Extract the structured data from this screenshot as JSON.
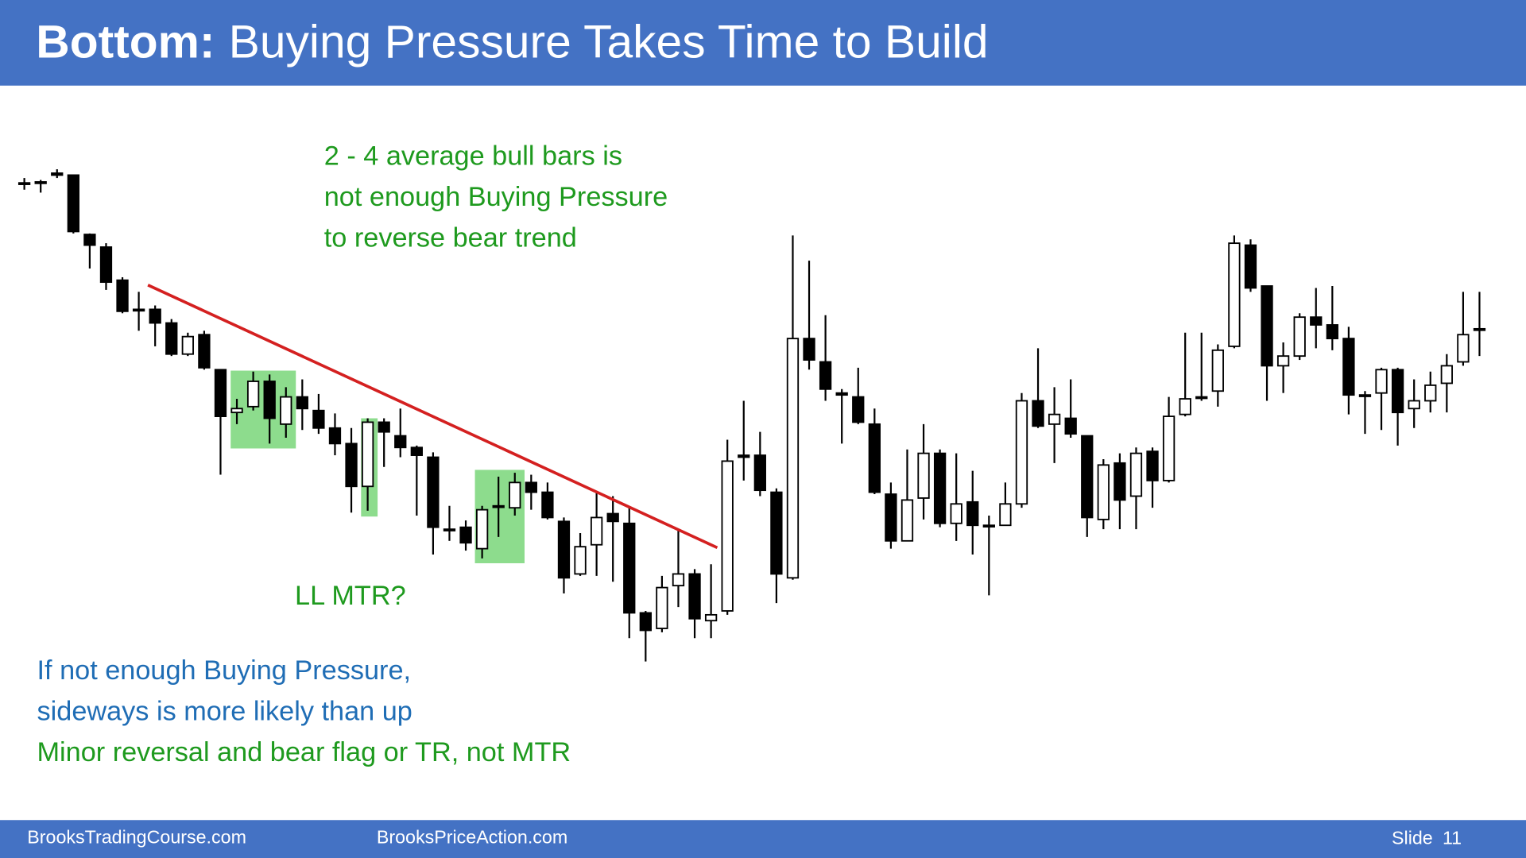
{
  "header": {
    "title_bold": "Bottom:",
    "title_rest": "Buying Pressure Takes Time to Build"
  },
  "annotations": {
    "green_top": [
      "2 - 4 average bull bars is",
      "not enough Buying Pressure",
      "to reverse bear trend"
    ],
    "ll_mtr": "LL MTR?",
    "blue": [
      "If not enough Buying Pressure,",
      "sideways is more likely than up"
    ],
    "green_bottom": "Minor reversal and bear flag or TR, not MTR"
  },
  "footer": {
    "left": "BrooksTradingCourse.com",
    "middle": "BrooksPriceAction.com",
    "slide_label": "Slide",
    "slide_number": "11"
  },
  "chart_data": {
    "type": "candlestick",
    "open": [
      812,
      813,
      822,
      820,
      759,
      746,
      712,
      682,
      682,
      668,
      636,
      656,
      620,
      576,
      582,
      608,
      564,
      592,
      578,
      560,
      544,
      500,
      566,
      552,
      540,
      530,
      456,
      458,
      436,
      480,
      478,
      504,
      494,
      464,
      410,
      440,
      472,
      462,
      370,
      354,
      398,
      410,
      362,
      372,
      532,
      532,
      494,
      406,
      652,
      628,
      596,
      592,
      564,
      492,
      444,
      488,
      534,
      462,
      484,
      460,
      460,
      482,
      588,
      564,
      570,
      552,
      466,
      524,
      490,
      536,
      506,
      574,
      592,
      598,
      644,
      748,
      706,
      624,
      634,
      674,
      666,
      652,
      594,
      596,
      620,
      580,
      588,
      606,
      628,
      662
    ],
    "high": [
      817,
      815,
      826,
      820,
      760,
      750,
      715,
      700,
      686,
      672,
      658,
      660,
      620,
      590,
      618,
      615,
      602,
      610,
      595,
      575,
      560,
      570,
      570,
      580,
      542,
      535,
      480,
      465,
      480,
      510,
      514,
      512,
      504,
      468,
      452,
      495,
      490,
      478,
      372,
      408,
      455,
      415,
      420,
      548,
      588,
      556,
      498,
      758,
      732,
      676,
      600,
      622,
      580,
      504,
      538,
      564,
      538,
      534,
      516,
      470,
      504,
      596,
      642,
      602,
      610,
      552,
      528,
      534,
      540,
      540,
      592,
      658,
      658,
      646,
      758,
      754,
      706,
      648,
      678,
      704,
      706,
      664,
      598,
      622,
      622,
      610,
      618,
      636,
      700,
      700
    ],
    "low": [
      805,
      802,
      817,
      760,
      724,
      702,
      678,
      660,
      644,
      634,
      634,
      620,
      512,
      564,
      578,
      544,
      550,
      558,
      554,
      532,
      473,
      475,
      520,
      530,
      470,
      430,
      444,
      434,
      426,
      448,
      470,
      476,
      466,
      390,
      408,
      408,
      402,
      344,
      320,
      350,
      376,
      344,
      344,
      368,
      506,
      490,
      380,
      404,
      620,
      588,
      544,
      564,
      492,
      436,
      444,
      466,
      458,
      444,
      430,
      388,
      460,
      478,
      560,
      524,
      550,
      448,
      456,
      456,
      456,
      478,
      504,
      572,
      588,
      582,
      642,
      700,
      588,
      596,
      630,
      642,
      640,
      574,
      554,
      558,
      542,
      560,
      576,
      576,
      624,
      634
    ],
    "close": [
      812,
      813,
      820,
      762,
      748,
      710,
      680,
      682,
      668,
      636,
      654,
      622,
      572,
      580,
      608,
      570,
      592,
      580,
      560,
      544,
      500,
      566,
      556,
      540,
      532,
      458,
      455,
      442,
      476,
      480,
      504,
      494,
      468,
      406,
      438,
      468,
      464,
      370,
      352,
      396,
      410,
      364,
      368,
      526,
      530,
      496,
      410,
      652,
      630,
      600,
      594,
      566,
      494,
      444,
      486,
      534,
      462,
      482,
      460,
      460,
      482,
      588,
      562,
      574,
      554,
      468,
      522,
      486,
      534,
      506,
      572,
      590,
      592,
      640,
      750,
      704,
      624,
      634,
      674,
      666,
      652,
      594,
      594,
      620,
      576,
      588,
      604,
      624,
      656,
      662
    ],
    "ylim": [
      300,
      860
    ],
    "up_color": "#ffffff",
    "down_color": "#000000"
  }
}
